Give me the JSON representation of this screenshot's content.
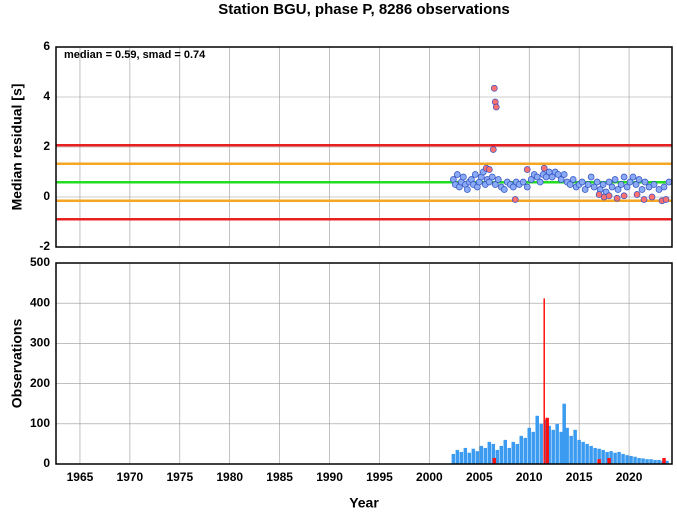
{
  "chart_data": [
    {
      "type": "scatter",
      "title": "Station BGU, phase P, 8286 observations",
      "ylabel": "Median residual [s]",
      "annotation": "median = 0.59, smad = 0.74",
      "xlim": [
        1962.6,
        2024.3
      ],
      "xticks": [
        1965,
        1970,
        1975,
        1980,
        1985,
        1990,
        1995,
        2000,
        2005,
        2010,
        2015,
        2020
      ],
      "ylim": [
        -2,
        6
      ],
      "yticks": [
        -2,
        0,
        2,
        4,
        6
      ],
      "grid": true,
      "reference_lines": [
        {
          "value": 2.07,
          "color": "#e82020"
        },
        {
          "value": 1.33,
          "color": "#f5a623"
        },
        {
          "value": 0.59,
          "color": "#22dd22"
        },
        {
          "value": -0.15,
          "color": "#f5a623"
        },
        {
          "value": -0.89,
          "color": "#e82020"
        }
      ],
      "series": [
        {
          "color": "#8aaaf5",
          "x": [
            2002.4,
            2002.6,
            2002.8,
            2003.0,
            2003.2,
            2003.4,
            2003.6,
            2003.8,
            2004.0,
            2004.2,
            2004.4,
            2004.6,
            2004.8,
            2005.0,
            2005.2,
            2005.4,
            2005.6,
            2005.8,
            2006.0,
            2006.3,
            2006.6,
            2006.9,
            2007.2,
            2007.5,
            2007.8,
            2008.1,
            2008.4,
            2008.7,
            2009.0,
            2009.4,
            2009.8,
            2010.2,
            2010.5,
            2010.8,
            2011.1,
            2011.4,
            2011.7,
            2012.0,
            2012.3,
            2012.6,
            2012.9,
            2013.2,
            2013.5,
            2013.8,
            2014.1,
            2014.4,
            2014.7,
            2015.0,
            2015.3,
            2015.6,
            2015.9,
            2016.2,
            2016.5,
            2016.8,
            2017.1,
            2017.4,
            2017.7,
            2018.0,
            2018.3,
            2018.6,
            2018.9,
            2019.2,
            2019.5,
            2019.8,
            2020.1,
            2020.4,
            2020.7,
            2021.0,
            2021.3,
            2021.6,
            2022.0,
            2022.5,
            2023.0,
            2023.5,
            2024.0
          ],
          "values": [
            0.7,
            0.5,
            0.9,
            0.4,
            0.6,
            0.8,
            0.5,
            0.3,
            0.6,
            0.7,
            0.5,
            0.9,
            0.4,
            0.6,
            0.8,
            1.0,
            0.5,
            0.7,
            0.6,
            0.8,
            0.5,
            0.7,
            0.4,
            0.3,
            0.6,
            0.5,
            0.4,
            0.6,
            0.5,
            0.6,
            0.4,
            0.7,
            0.9,
            0.8,
            0.6,
            0.9,
            0.8,
            1.0,
            0.8,
            1.0,
            0.9,
            0.7,
            0.9,
            0.6,
            0.5,
            0.7,
            0.4,
            0.5,
            0.6,
            0.3,
            0.5,
            0.8,
            0.4,
            0.6,
            0.3,
            0.5,
            0.2,
            0.6,
            0.4,
            0.7,
            0.3,
            0.5,
            0.8,
            0.4,
            0.6,
            0.8,
            0.5,
            0.7,
            0.3,
            0.6,
            0.4,
            0.5,
            0.3,
            0.4,
            0.6
          ]
        },
        {
          "color": "#ff7070",
          "x": [
            2006.5,
            2006.6,
            2006.7,
            2006.4,
            2005.7,
            2006.0,
            2008.6,
            2009.8,
            2011.5,
            2017.0,
            2017.5,
            2018.0,
            2018.8,
            2019.5,
            2020.8,
            2021.5,
            2022.3,
            2023.3,
            2023.7
          ],
          "values": [
            4.35,
            3.8,
            3.6,
            1.9,
            1.15,
            1.1,
            -0.1,
            1.1,
            1.15,
            0.1,
            0.0,
            0.05,
            -0.05,
            0.05,
            0.1,
            -0.1,
            0.0,
            -0.15,
            -0.1
          ]
        }
      ]
    },
    {
      "type": "bar",
      "ylabel": "Observations",
      "xlabel": "Year",
      "xlim": [
        1962.6,
        2024.3
      ],
      "xticks": [
        1965,
        1970,
        1975,
        1980,
        1985,
        1990,
        1995,
        2000,
        2005,
        2010,
        2015,
        2020
      ],
      "ylim": [
        0,
        500
      ],
      "yticks": [
        0,
        100,
        200,
        300,
        400,
        500
      ],
      "grid": true,
      "series": [
        {
          "color": "#3a9bf0",
          "x": [
            2002.4,
            2002.8,
            2003.2,
            2003.6,
            2004.0,
            2004.4,
            2004.8,
            2005.2,
            2005.6,
            2006.0,
            2006.4,
            2006.8,
            2007.2,
            2007.6,
            2008.0,
            2008.4,
            2008.8,
            2009.2,
            2009.6,
            2010.0,
            2010.4,
            2010.8,
            2011.2,
            2011.6,
            2012.0,
            2012.4,
            2012.8,
            2013.2,
            2013.5,
            2013.8,
            2014.2,
            2014.6,
            2015.0,
            2015.4,
            2015.8,
            2016.2,
            2016.6,
            2017.0,
            2017.4,
            2017.8,
            2018.2,
            2018.6,
            2019.0,
            2019.4,
            2019.8,
            2020.2,
            2020.6,
            2021.0,
            2021.4,
            2021.8,
            2022.2,
            2022.6,
            2023.0,
            2023.4,
            2023.8
          ],
          "values": [
            25,
            35,
            30,
            40,
            28,
            38,
            32,
            45,
            40,
            55,
            50,
            35,
            45,
            60,
            40,
            55,
            50,
            70,
            65,
            90,
            80,
            120,
            100,
            110,
            95,
            85,
            100,
            80,
            150,
            90,
            70,
            85,
            60,
            55,
            50,
            45,
            40,
            38,
            35,
            30,
            32,
            28,
            30,
            25,
            22,
            20,
            18,
            15,
            14,
            12,
            12,
            10,
            10,
            8,
            8
          ]
        },
        {
          "color": "#ff1010",
          "x": [
            2006.5,
            2011.6,
            2011.8,
            2017.0,
            2018.0,
            2023.5
          ],
          "values": [
            15,
            412,
            115,
            12,
            15,
            15
          ]
        }
      ]
    }
  ]
}
